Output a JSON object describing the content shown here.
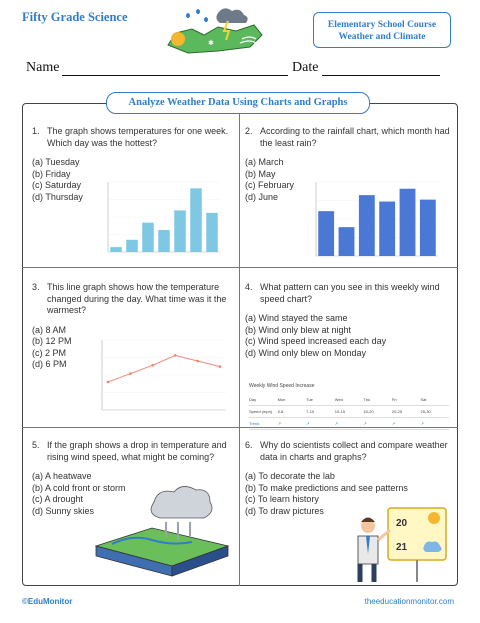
{
  "header": {
    "brand": "Fifty Grade Science",
    "course_line1": "Elementary School Course",
    "course_line2": "Weather and Climate",
    "name_label": "Name",
    "date_label": "Date"
  },
  "section_title": "Analyze Weather Data Using Charts and Graphs",
  "questions": [
    {
      "num": "1.",
      "text": "The graph shows temperatures for one week. Which day was the hottest?",
      "options": [
        "(a) Tuesday",
        "(b) Friday",
        "(c) Saturday",
        "(d) Thursday"
      ]
    },
    {
      "num": "2.",
      "text": "According to the rainfall chart, which month had the least rain?",
      "options": [
        "(a) March",
        "(b) May",
        "(c) February",
        "(d) June"
      ]
    },
    {
      "num": "3.",
      "text": "This line graph shows how the temperature changed during the day. What time was it the warmest?",
      "options": [
        "(a) 8 AM",
        "(b) 12 PM",
        "(c) 2 PM",
        "(d) 6 PM"
      ]
    },
    {
      "num": "4.",
      "text": "What pattern can you see in this weekly wind speed chart?",
      "options": [
        "(a) Wind stayed the same",
        "(b) Wind only blew at night",
        "(c) Wind speed increased each day",
        "(d) Wind only blew on Monday"
      ]
    },
    {
      "num": "5.",
      "text": "If the graph shows a drop in temperature and rising wind speed, what might be coming?",
      "options": [
        "(a) A heatwave",
        "(b) A cold front or storm",
        "(c) A drought",
        "(d) Sunny skies"
      ]
    },
    {
      "num": "6.",
      "text": "Why do scientists collect and compare weather data in charts and graphs?",
      "options": [
        "(a) To decorate the lab",
        "(b) To make predictions and see patterns",
        "(c) To learn history",
        "(d) To draw pictures"
      ]
    }
  ],
  "wind_table": {
    "title": "Weekly Wind Speed Increase",
    "rows": [
      [
        "Day",
        "Mon",
        "Tue",
        "Wed",
        "Thu",
        "Fri",
        "Sat"
      ],
      [
        "Speed (mph)",
        "5-8",
        "7-10",
        "10-15",
        "15-20",
        "20-25",
        "25-30"
      ],
      [
        "Trend",
        "↗",
        "↗",
        "↗",
        "↗",
        "↗",
        "↗"
      ]
    ]
  },
  "board_numbers": {
    "top": "20",
    "bottom": "21"
  },
  "chart_data": [
    {
      "type": "bar",
      "values": [
        2,
        5,
        12,
        9,
        17,
        26,
        16
      ],
      "color": "#7ec8e3"
    },
    {
      "type": "bar",
      "values": [
        70,
        45,
        95,
        85,
        105,
        88
      ],
      "color": "#4a78d4"
    },
    {
      "type": "line",
      "values": [
        40,
        52,
        64,
        78,
        70,
        62
      ],
      "color": "#f08a7a"
    }
  ],
  "footer": {
    "left": "©EduMonitor",
    "right": "theeducationmonitor.com"
  },
  "colors": {
    "accent": "#2f7ec7"
  }
}
